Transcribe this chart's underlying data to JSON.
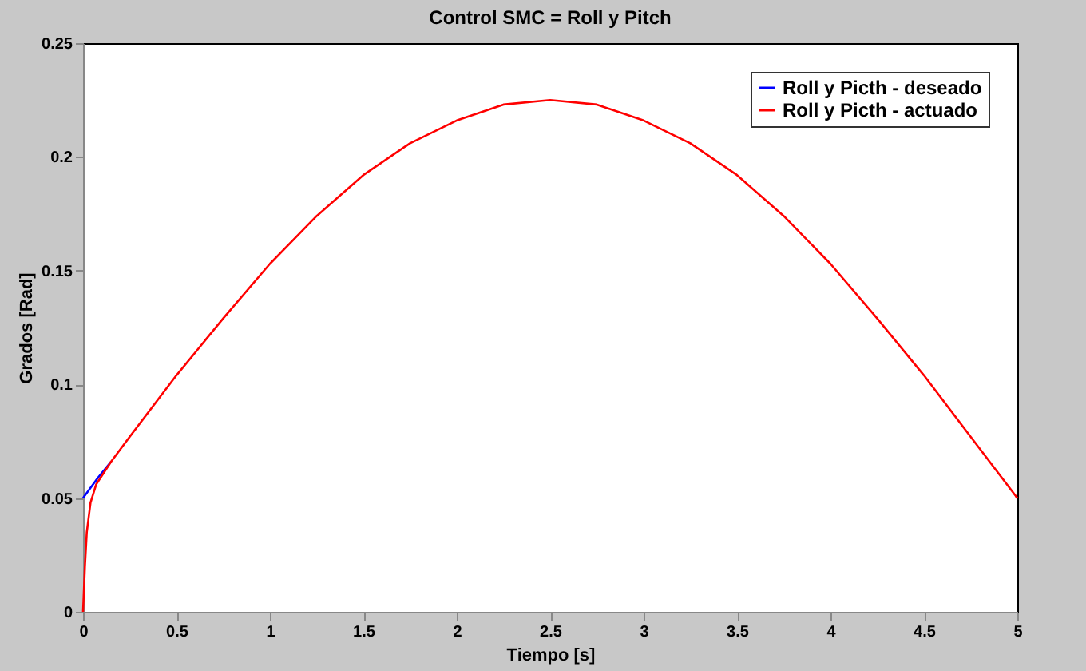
{
  "chart_data": {
    "type": "line",
    "title": "Control SMC = Roll y Pitch",
    "xlabel": "Tiempo [s]",
    "ylabel": "Grados [Rad]",
    "xlim": [
      0,
      5
    ],
    "xticks": [
      0,
      0.5,
      1,
      1.5,
      2,
      2.5,
      3,
      3.5,
      4,
      4.5,
      5
    ],
    "ylim": [
      0,
      0.25
    ],
    "yticks": [
      0,
      0.05,
      0.1,
      0.15,
      0.2,
      0.25
    ],
    "legend": "top right",
    "grid": false,
    "series": [
      {
        "name": "Roll y Picth - deseado",
        "color": "#0000ff",
        "x": [
          0,
          0.08,
          0.15
        ],
        "values": [
          0.05,
          0.059,
          0.066
        ]
      },
      {
        "name": "Roll y Picth - actuado",
        "color": "#ff0000",
        "x": [
          0,
          0.01,
          0.02,
          0.04,
          0.07,
          0.15,
          0.25,
          0.5,
          0.75,
          1,
          1.25,
          1.5,
          1.75,
          2,
          2.25,
          2.5,
          2.75,
          3,
          3.25,
          3.5,
          3.75,
          4,
          4.25,
          4.5,
          4.75,
          5
        ],
        "values": [
          0,
          0.02,
          0.035,
          0.048,
          0.056,
          0.066,
          0.077,
          0.104,
          0.129,
          0.153,
          0.174,
          0.192,
          0.206,
          0.216,
          0.223,
          0.225,
          0.223,
          0.216,
          0.206,
          0.192,
          0.174,
          0.153,
          0.129,
          0.104,
          0.077,
          0.05
        ]
      }
    ]
  }
}
